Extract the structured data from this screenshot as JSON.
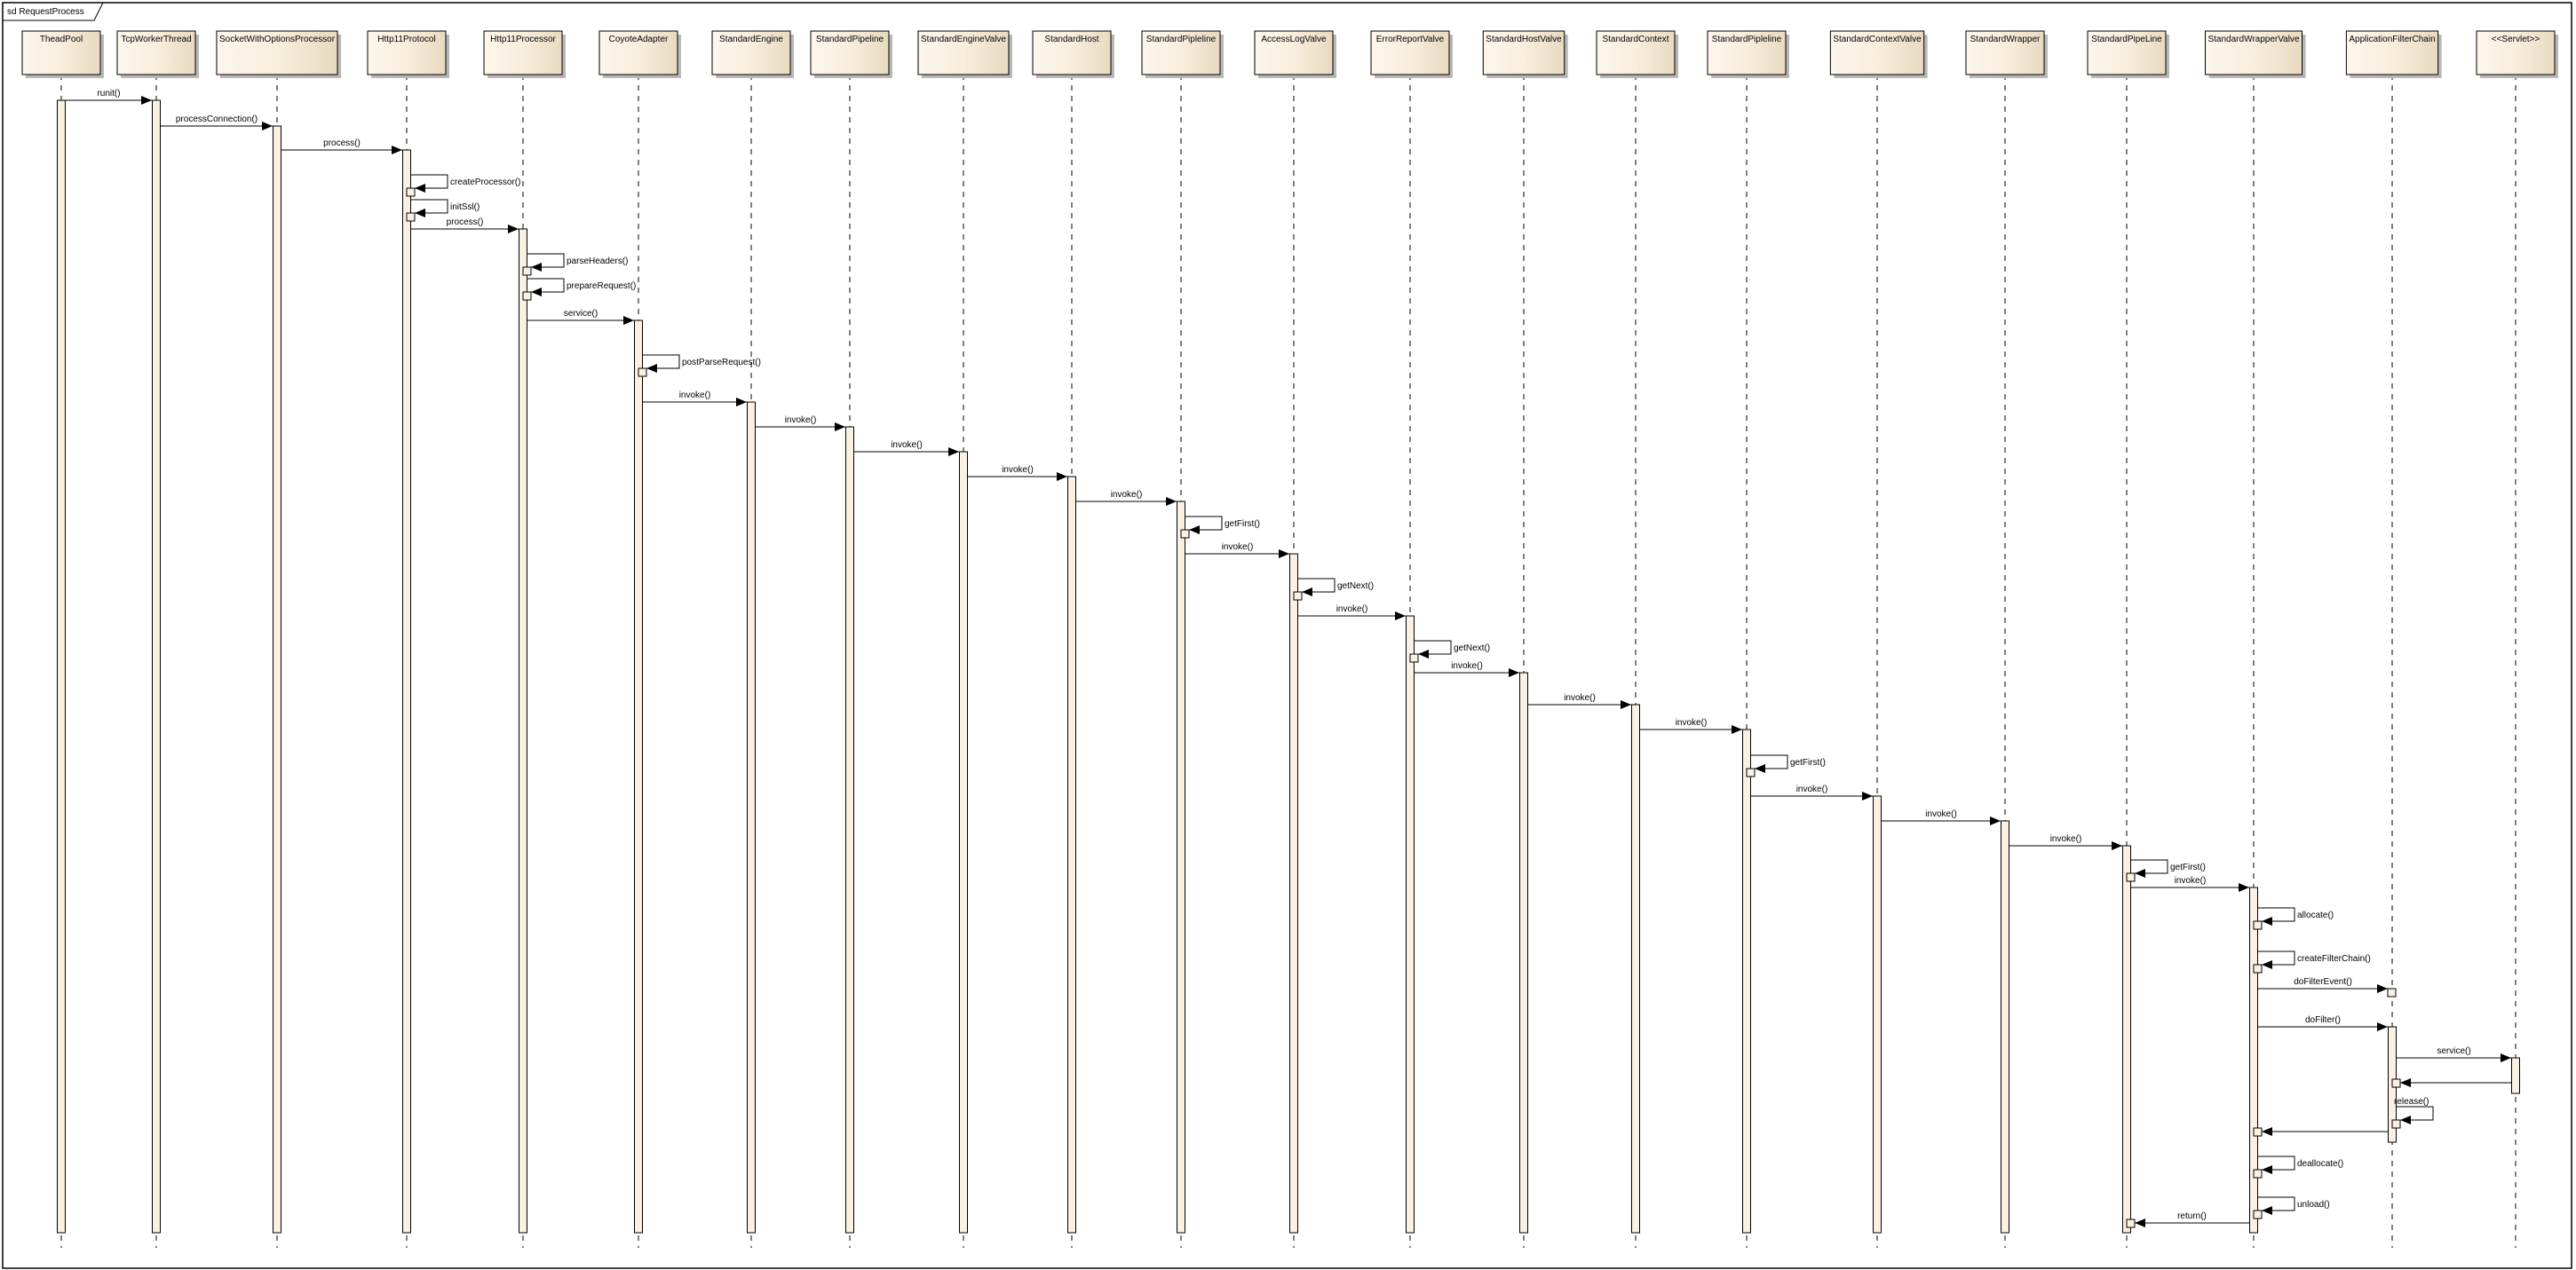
{
  "frame": {
    "title": "sd RequestProcess"
  },
  "colors": {
    "box_light": "#fdf6ea",
    "box_dark": "#e8dac0",
    "activation": "#fbf1e3",
    "line": "#000000"
  },
  "participants": [
    "TheadPool",
    "TcpWorkerThread",
    "SocketWithOptionsProcessor",
    "Http11Protocol",
    "Http11Processor",
    "CoyoteAdapter",
    "StandardEngine",
    "StandardPipeline",
    "StandardEngineValve",
    "StandardHost",
    "StandardPipleline",
    "AccessLogValve",
    "ErrorReportValve",
    "StandardHostValve",
    "StandardContext",
    "StandardPipleline",
    "StandardContextValve",
    "StandardWrapper",
    "StandardPipeLine",
    "StandardWrapperValve",
    "ApplicationFilterChain",
    "<<Servlet>>"
  ],
  "messages": [
    {
      "from": 0,
      "to": 1,
      "label": "runit()",
      "kind": "call"
    },
    {
      "from": 1,
      "to": 2,
      "label": "processConnection()",
      "kind": "call"
    },
    {
      "from": 2,
      "to": 3,
      "label": "process()",
      "kind": "call"
    },
    {
      "from": 3,
      "to": 3,
      "label": "createProcessor()",
      "kind": "self"
    },
    {
      "from": 3,
      "to": 3,
      "label": "initSsl()",
      "kind": "self"
    },
    {
      "from": 3,
      "to": 4,
      "label": "process()",
      "kind": "call"
    },
    {
      "from": 4,
      "to": 4,
      "label": "parseHeaders()",
      "kind": "self"
    },
    {
      "from": 4,
      "to": 4,
      "label": "prepareRequest()",
      "kind": "self"
    },
    {
      "from": 4,
      "to": 5,
      "label": "service()",
      "kind": "call"
    },
    {
      "from": 5,
      "to": 5,
      "label": "postParseRequest()",
      "kind": "self"
    },
    {
      "from": 5,
      "to": 6,
      "label": "invoke()",
      "kind": "call"
    },
    {
      "from": 6,
      "to": 7,
      "label": "invoke()",
      "kind": "call"
    },
    {
      "from": 7,
      "to": 8,
      "label": "invoke()",
      "kind": "call"
    },
    {
      "from": 8,
      "to": 9,
      "label": "invoke()",
      "kind": "call"
    },
    {
      "from": 9,
      "to": 10,
      "label": "invoke()",
      "kind": "call"
    },
    {
      "from": 10,
      "to": 10,
      "label": "getFirst()",
      "kind": "self"
    },
    {
      "from": 10,
      "to": 11,
      "label": "invoke()",
      "kind": "call"
    },
    {
      "from": 11,
      "to": 11,
      "label": "getNext()",
      "kind": "self"
    },
    {
      "from": 11,
      "to": 12,
      "label": "invoke()",
      "kind": "call"
    },
    {
      "from": 12,
      "to": 12,
      "label": "getNext()",
      "kind": "self"
    },
    {
      "from": 12,
      "to": 13,
      "label": "invoke()",
      "kind": "call"
    },
    {
      "from": 13,
      "to": 14,
      "label": "invoke()",
      "kind": "call"
    },
    {
      "from": 14,
      "to": 15,
      "label": "invoke()",
      "kind": "call"
    },
    {
      "from": 15,
      "to": 15,
      "label": "getFirst()",
      "kind": "self"
    },
    {
      "from": 15,
      "to": 16,
      "label": "invoke()",
      "kind": "call"
    },
    {
      "from": 16,
      "to": 17,
      "label": "invoke()",
      "kind": "call"
    },
    {
      "from": 17,
      "to": 18,
      "label": "invoke()",
      "kind": "call"
    },
    {
      "from": 18,
      "to": 18,
      "label": "getFirst()",
      "kind": "self"
    },
    {
      "from": 18,
      "to": 19,
      "label": "invoke()",
      "kind": "call"
    },
    {
      "from": 19,
      "to": 19,
      "label": "allocate()",
      "kind": "self"
    },
    {
      "from": 19,
      "to": 19,
      "label": "createFilterChain()",
      "kind": "self"
    },
    {
      "from": 19,
      "to": 20,
      "label": "doFilterEvent()",
      "kind": "call"
    },
    {
      "from": 19,
      "to": 20,
      "label": "doFilter()",
      "kind": "call"
    },
    {
      "from": 20,
      "to": 21,
      "label": "service()",
      "kind": "call"
    },
    {
      "from": 21,
      "to": 20,
      "label": "",
      "kind": "return"
    },
    {
      "from": 20,
      "to": 20,
      "label": "release()",
      "kind": "self"
    },
    {
      "from": 20,
      "to": 19,
      "label": "",
      "kind": "return"
    },
    {
      "from": 19,
      "to": 19,
      "label": "deallocate()",
      "kind": "self"
    },
    {
      "from": 19,
      "to": 19,
      "label": "unload()",
      "kind": "self"
    },
    {
      "from": 19,
      "to": 18,
      "label": "return()",
      "kind": "return"
    }
  ]
}
